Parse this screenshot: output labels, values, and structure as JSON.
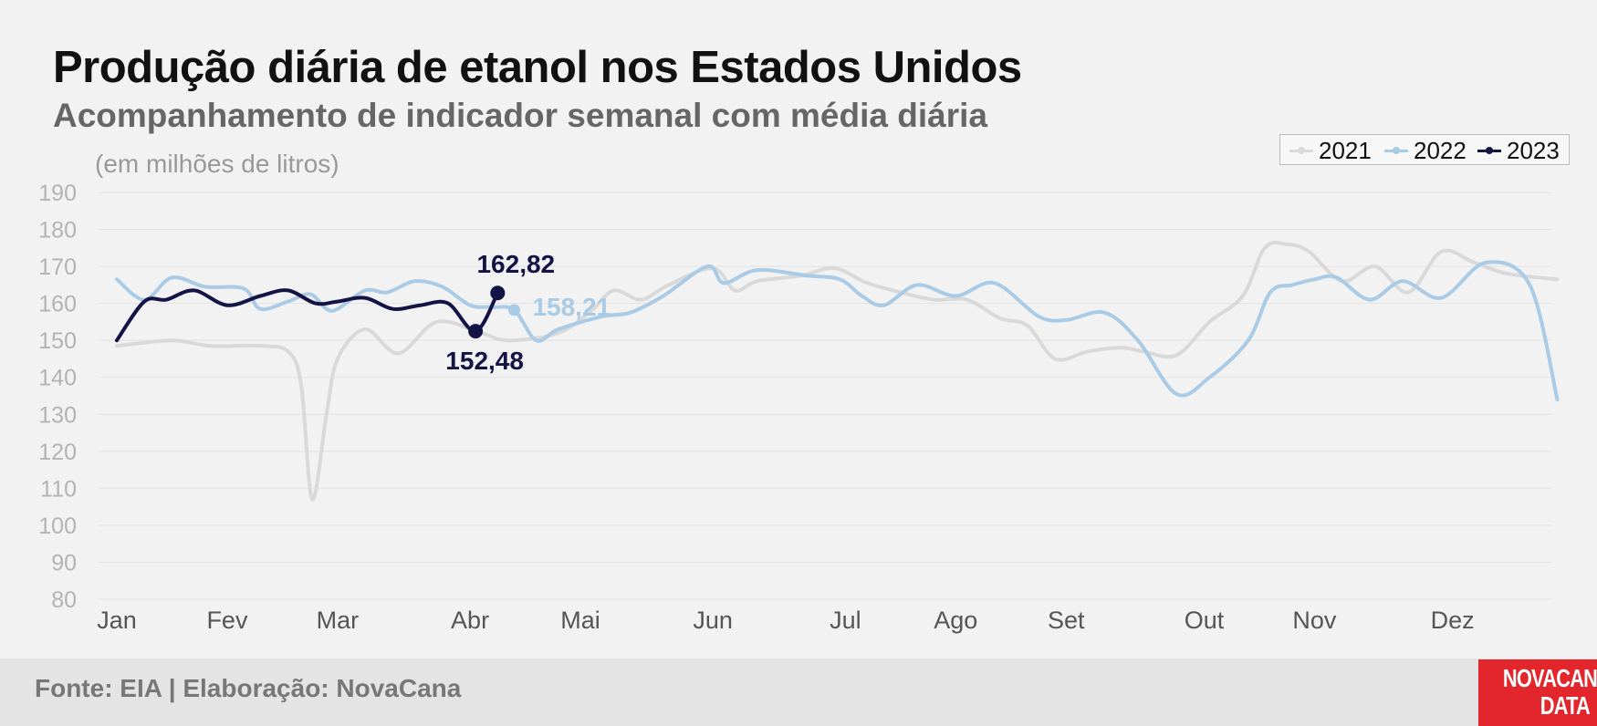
{
  "header": {
    "title": "Produção diária de etanol nos Estados Unidos",
    "subtitle": "Acompanhamento de indicador semanal com média diária",
    "unit_note": "(em milhões de litros)"
  },
  "footer": {
    "source": "Fonte: EIA | Elaboração: NovaCana",
    "logo_line1": "NOVACANA",
    "logo_line2": "DATA"
  },
  "colors": {
    "s2021": "#d9d9d9",
    "s2022": "#a9cbe5",
    "s2023": "#141346",
    "grid": "#e3e3e3",
    "axis_text": "#b3b3b3",
    "month_text": "#555555",
    "logo_bg": "#e3262c"
  },
  "chart_data": {
    "type": "line",
    "title": "Produção diária de etanol nos Estados Unidos",
    "subtitle": "Acompanhamento de indicador semanal com média diária",
    "ylabel": "(em milhões de litros)",
    "xlabel": "",
    "ylim": [
      80,
      190
    ],
    "xlim": [
      0,
      12.5
    ],
    "y_ticks": [
      80,
      90,
      100,
      110,
      120,
      130,
      140,
      150,
      160,
      170,
      180,
      190
    ],
    "x_ticks": [
      {
        "label": "Jan",
        "x": 0
      },
      {
        "label": "Fev",
        "x": 1
      },
      {
        "label": "Mar",
        "x": 2
      },
      {
        "label": "Abr",
        "x": 3.2
      },
      {
        "label": "Mai",
        "x": 4.2
      },
      {
        "label": "Jun",
        "x": 5.4
      },
      {
        "label": "Jul",
        "x": 6.6
      },
      {
        "label": "Ago",
        "x": 7.6
      },
      {
        "label": "Set",
        "x": 8.6
      },
      {
        "label": "Out",
        "x": 9.85
      },
      {
        "label": "Nov",
        "x": 10.85
      },
      {
        "label": "Dez",
        "x": 12.1
      }
    ],
    "grid": true,
    "legend_position": "top-right",
    "series": [
      {
        "name": "2021",
        "x": [
          0,
          0.5,
          0.85,
          1.3,
          1.55,
          1.67,
          1.77,
          1.9,
          2.0,
          2.25,
          2.55,
          2.9,
          3.3,
          3.55,
          4.0,
          4.3,
          4.5,
          4.75,
          5.0,
          5.4,
          5.6,
          5.8,
          6.2,
          6.5,
          6.8,
          7.1,
          7.4,
          7.7,
          8.0,
          8.25,
          8.5,
          8.8,
          9.1,
          9.3,
          9.6,
          9.9,
          10.2,
          10.4,
          10.6,
          10.8,
          11.1,
          11.4,
          11.7,
          12.0,
          12.3,
          12.6,
          13.05
        ],
        "y": [
          148.5,
          150,
          148.5,
          148.5,
          147,
          138,
          107,
          130,
          145,
          153,
          146.5,
          155,
          152,
          150,
          152,
          158,
          163.5,
          161,
          165,
          169.5,
          163.5,
          166,
          167.5,
          169.5,
          165.5,
          163,
          161,
          161,
          156,
          154,
          145,
          147,
          148,
          147,
          146,
          155,
          162,
          175,
          176,
          174,
          166,
          170,
          163,
          174,
          171,
          168,
          166.5
        ]
      },
      {
        "name": "2022",
        "x": [
          0,
          0.25,
          0.5,
          0.8,
          1.15,
          1.3,
          1.55,
          1.75,
          1.9,
          2.0,
          2.25,
          2.45,
          2.7,
          2.95,
          3.2,
          3.4,
          3.6,
          3.8,
          4.0,
          4.4,
          4.65,
          4.95,
          5.35,
          5.5,
          5.8,
          6.25,
          6.55,
          6.75,
          6.95,
          7.25,
          7.6,
          7.95,
          8.35,
          8.6,
          8.95,
          9.25,
          9.6,
          9.9,
          10.25,
          10.45,
          10.65,
          10.85,
          11.05,
          11.35,
          11.65,
          12.0,
          12.4,
          12.8,
          13.05
        ],
        "y": [
          166.5,
          161,
          167,
          164.5,
          164,
          158.5,
          160.5,
          162.5,
          158.5,
          158.5,
          163.5,
          163,
          166,
          164.5,
          159.5,
          159,
          158.2,
          150,
          153,
          156.5,
          157.5,
          162,
          170,
          165.5,
          169,
          167.5,
          166.5,
          162,
          159.5,
          165,
          162,
          165.5,
          156.5,
          155.5,
          157.5,
          150,
          135.5,
          140,
          150,
          163,
          165,
          166.5,
          167,
          161,
          166,
          161.5,
          171,
          165,
          134
        ]
      },
      {
        "name": "2023",
        "x": [
          0,
          0.25,
          0.45,
          0.7,
          1.0,
          1.3,
          1.55,
          1.8,
          2.0,
          2.25,
          2.5,
          2.75,
          3.0,
          3.25,
          3.45
        ],
        "y": [
          150,
          160.5,
          161,
          163.5,
          159.5,
          162,
          163.5,
          160,
          160.5,
          161.5,
          158.5,
          159.5,
          160,
          152.48,
          162.82
        ]
      }
    ],
    "annotations": [
      {
        "text": "162,82",
        "series": "2023",
        "x": 3.45,
        "y": 162.82
      },
      {
        "text": "152,48",
        "series": "2023",
        "x": 3.25,
        "y": 152.48
      },
      {
        "text": "158,21",
        "series": "2022",
        "x": 3.6,
        "y": 158.21
      }
    ]
  }
}
